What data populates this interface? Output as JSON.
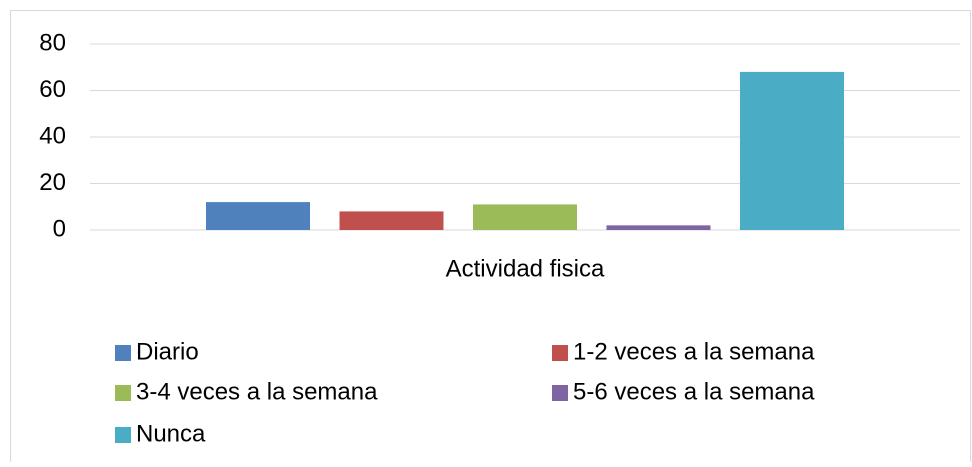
{
  "chart_data": {
    "type": "bar",
    "categories": [
      "Actividad fisica"
    ],
    "series": [
      {
        "name": "Diario",
        "color": "#4f81bd",
        "values": [
          12
        ]
      },
      {
        "name": "1-2 veces a la semana",
        "color": "#c0504d",
        "values": [
          8
        ]
      },
      {
        "name": "3-4 veces a la semana",
        "color": "#9bbb59",
        "values": [
          11
        ]
      },
      {
        "name": "5-6 veces a la semana",
        "color": "#8064a2",
        "values": [
          2
        ]
      },
      {
        "name": "Nunca",
        "color": "#4bacc6",
        "values": [
          68
        ]
      }
    ],
    "ylim": [
      0,
      80
    ],
    "yticks": [
      0,
      20,
      40,
      60,
      80
    ],
    "grid": true,
    "legend": "bottom"
  }
}
